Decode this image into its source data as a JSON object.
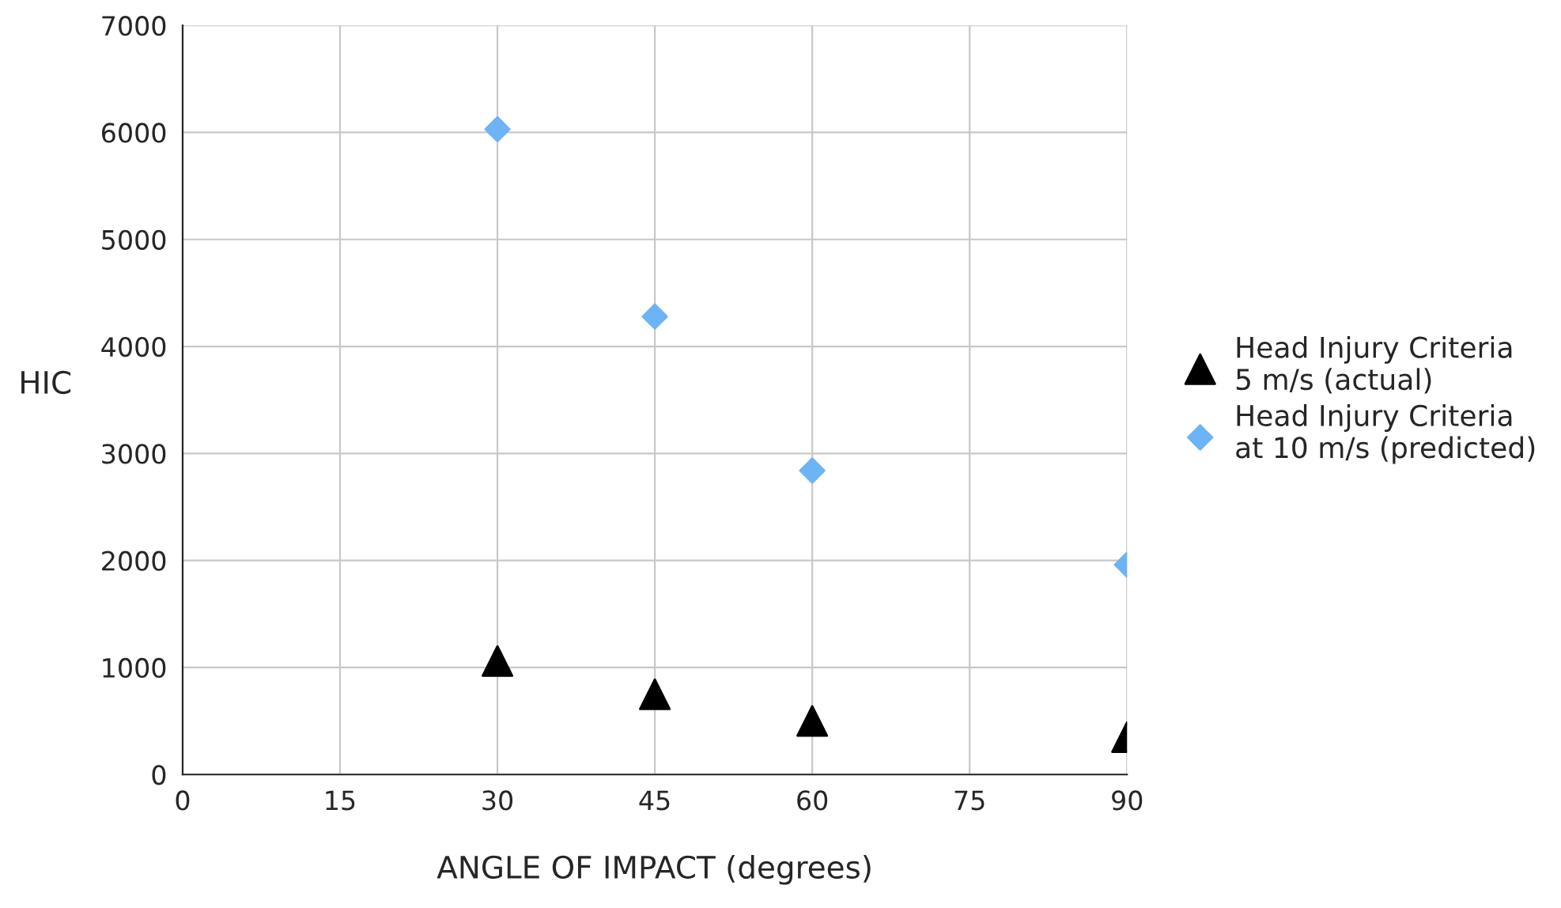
{
  "chart_data": {
    "type": "scatter",
    "xlabel": "ANGLE OF IMPACT (degrees)",
    "ylabel": "HIC",
    "xlim": [
      0,
      90
    ],
    "xticks": [
      0,
      15,
      30,
      45,
      60,
      75,
      90
    ],
    "ylim": [
      0,
      7000
    ],
    "yticks": [
      0,
      1000,
      2000,
      3000,
      4000,
      5000,
      6000,
      7000
    ],
    "grid": true,
    "legend": "right",
    "series": [
      {
        "name": "Head Injury Criteria\n5 m/s (actual)",
        "color": "#000000",
        "marker": "triangle",
        "x": [
          30,
          45,
          60,
          90
        ],
        "values": [
          1060,
          750,
          500,
          350
        ]
      },
      {
        "name": "Head Injury Criteria\nat 10 m/s (predicted)",
        "color": "#6cb4f5",
        "marker": "diamond",
        "x": [
          30,
          45,
          60,
          90
        ],
        "values": [
          6030,
          4280,
          2840,
          1960
        ]
      }
    ]
  }
}
